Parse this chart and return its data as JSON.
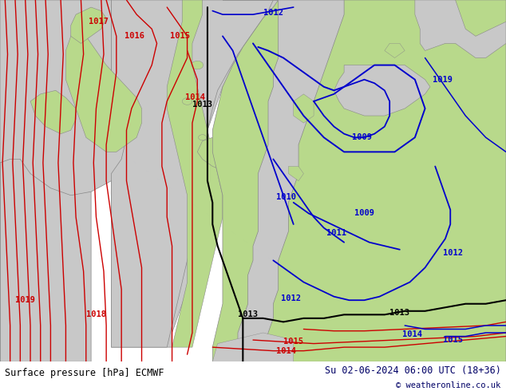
{
  "title_left": "Surface pressure [hPa] ECMWF",
  "title_right": "Su 02-06-2024 06:00 UTC (18+36)",
  "copyright": "© weatheronline.co.uk",
  "land_color": "#b8d98b",
  "sea_color": "#c8c8c8",
  "border_color": "#888888",
  "bottom_bar_color": "#ffffff",
  "red_color": "#cc0000",
  "blue_color": "#0000cc",
  "black_color": "#000000",
  "fig_width": 6.34,
  "fig_height": 4.9,
  "dpi": 100
}
